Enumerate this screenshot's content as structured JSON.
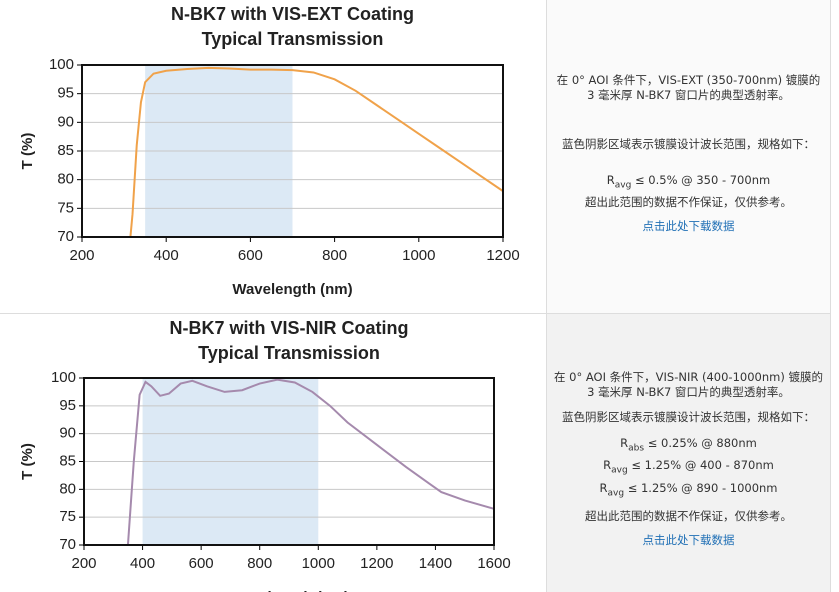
{
  "chart_data": [
    {
      "type": "line",
      "title": "N-BK7 with VIS-EXT Coating",
      "subtitle": "Typical Transmission",
      "x_label": "Wavelength (nm)",
      "y_label": "T (%)",
      "x": [
        315,
        320,
        330,
        340,
        350,
        370,
        400,
        450,
        500,
        550,
        600,
        650,
        700,
        750,
        800,
        850,
        900,
        950,
        1000,
        1050,
        1100,
        1150,
        1200
      ],
      "values": [
        70,
        74,
        86,
        93.5,
        97,
        98.5,
        99,
        99.3,
        99.5,
        99.4,
        99.2,
        99.2,
        99.1,
        98.7,
        97.5,
        95.5,
        93,
        90.5,
        88,
        85.5,
        83,
        80.5,
        78
      ],
      "color": "#f0a24a",
      "shaded_range": [
        350,
        700
      ],
      "shade_color": "#dce9f5",
      "xlim": [
        200,
        1200
      ],
      "xticks": [
        200,
        400,
        600,
        800,
        1000,
        1200
      ],
      "ylim": [
        70,
        100
      ],
      "yticks": [
        70,
        75,
        80,
        85,
        90,
        95,
        100
      ],
      "grid": true
    },
    {
      "type": "line",
      "title": "N-BK7 with VIS-NIR Coating",
      "subtitle": "Typical Transmission",
      "x_label": "Wavelength (nm)",
      "y_label": "T (%)",
      "x": [
        350,
        370,
        390,
        410,
        430,
        460,
        490,
        530,
        570,
        620,
        680,
        740,
        800,
        860,
        920,
        980,
        1040,
        1100,
        1200,
        1300,
        1380,
        1420,
        1500,
        1600
      ],
      "values": [
        70,
        85,
        97,
        99.3,
        98.5,
        96.8,
        97.2,
        99,
        99.5,
        98.5,
        97.5,
        97.8,
        99,
        99.7,
        99.2,
        97.5,
        95,
        92,
        88,
        84,
        81,
        79.5,
        78,
        76.5
      ],
      "color": "#a58aad",
      "shaded_range": [
        400,
        1000
      ],
      "shade_color": "#dce9f5",
      "xlim": [
        200,
        1600
      ],
      "xticks": [
        200,
        400,
        600,
        800,
        1000,
        1200,
        1400,
        1600
      ],
      "ylim": [
        70,
        100
      ],
      "yticks": [
        70,
        75,
        80,
        85,
        90,
        95,
        100
      ],
      "grid": true
    }
  ],
  "panels": [
    {
      "description": "在 0° AOI 条件下，VIS-EXT (350-700nm) 镀膜的 3 毫米厚 N-BK7 窗口片的典型透射率。",
      "shading_note": "蓝色阴影区域表示镀膜设计波长范围，规格如下：",
      "specs": [
        {
          "symbol": "R",
          "sub": "avg",
          "text": " ≤ 0.5% @ 350 - 700nm"
        }
      ],
      "disclaimer": "超出此范围的数据不作保证，仅供参考。",
      "link": "点击此处下载数据"
    },
    {
      "description": "在 0° AOI 条件下，VIS-NIR (400-1000nm) 镀膜的 3 毫米厚 N-BK7 窗口片的典型透射率。",
      "shading_note": "蓝色阴影区域表示镀膜设计波长范围，规格如下：",
      "specs": [
        {
          "symbol": "R",
          "sub": "abs",
          "text": " ≤ 0.25% @ 880nm"
        },
        {
          "symbol": "R",
          "sub": "avg",
          "text": " ≤ 1.25% @ 400 - 870nm"
        },
        {
          "symbol": "R",
          "sub": "avg",
          "text": " ≤ 1.25% @ 890 - 1000nm"
        }
      ],
      "disclaimer": "超出此范围的数据不作保证，仅供参考。",
      "link": "点击此处下载数据"
    }
  ]
}
